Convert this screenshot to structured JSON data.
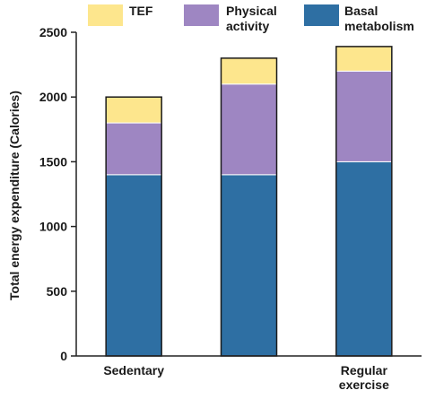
{
  "chart_data": {
    "type": "bar",
    "stacked": true,
    "categories": [
      {
        "lines": [
          "Sedentary"
        ]
      },
      {
        "lines": []
      },
      {
        "lines": [
          "Regular",
          "exercise"
        ]
      }
    ],
    "series": [
      {
        "name": [
          "Basal",
          "metabolism"
        ],
        "color": "#2e6fa3",
        "values": [
          1400,
          1400,
          1500
        ]
      },
      {
        "name": [
          "Physical",
          "activity"
        ],
        "color": "#9e86c2",
        "values": [
          400,
          700,
          700
        ]
      },
      {
        "name": [
          "TEF"
        ],
        "color": "#fde68d",
        "values": [
          200,
          200,
          190
        ]
      }
    ],
    "legend_order": [
      2,
      1,
      0
    ],
    "ylabel": "Total energy expenditure (Calories)",
    "ylim": [
      0,
      2500
    ],
    "yticks": [
      0,
      500,
      1000,
      1500,
      2000,
      2500
    ],
    "legend_position": "top"
  }
}
